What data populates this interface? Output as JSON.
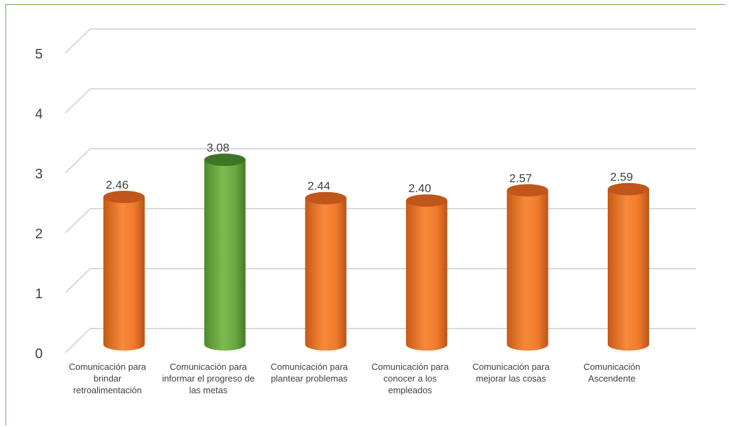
{
  "chart_data": {
    "type": "bar",
    "categories": [
      "Comunicación para brindar retroalimentación",
      "Comunicación para informar el progreso de las metas",
      "Comunicación para plantear problemas",
      "Comunicación para conocer a los empleados",
      "Comunicación para mejorar las cosas",
      "Comunicación Ascendente"
    ],
    "values": [
      2.46,
      3.08,
      2.44,
      2.4,
      2.57,
      2.59
    ],
    "data_labels": [
      "2.46",
      "3.08",
      "2.44",
      "2.40",
      "2.57",
      "2.59"
    ],
    "y_ticks": [
      "0",
      "1",
      "2",
      "3",
      "4",
      "5"
    ],
    "ylim": [
      0,
      5
    ],
    "grid": true,
    "bar_style": "3d-cylinder",
    "colors": {
      "default": "#ed7d31",
      "highlight": "#70ad47",
      "highlight_index": 1,
      "grid": "#d9d9d9",
      "frame": "#70ad47",
      "text": "#404040"
    },
    "title": "",
    "xlabel": "",
    "ylabel": ""
  }
}
